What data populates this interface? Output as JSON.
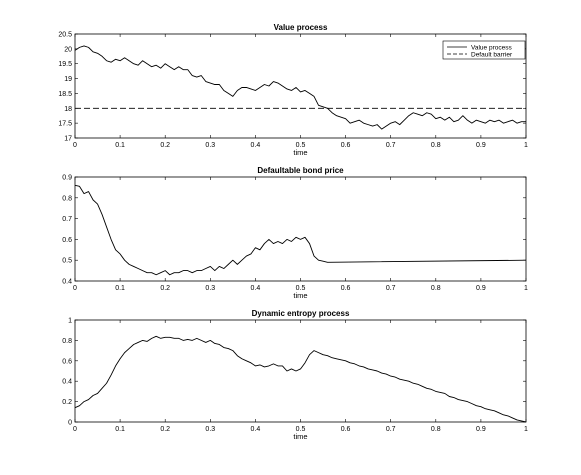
{
  "chart_data": [
    {
      "type": "line",
      "title": "Value process",
      "xlabel": "time",
      "ylabel": "",
      "xlim": [
        0,
        1
      ],
      "ylim": [
        17,
        20.5
      ],
      "xticks": [
        "0",
        "0.1",
        "0.2",
        "0.3",
        "0.4",
        "0.5",
        "0.6",
        "0.7",
        "0.8",
        "0.9",
        "1"
      ],
      "yticks": [
        "17",
        "17.5",
        "18",
        "18.5",
        "19",
        "19.5",
        "20",
        "20.5"
      ],
      "grid": false,
      "legend_position": "top-right",
      "series": [
        {
          "name": "Value process",
          "style": "solid",
          "x": [
            0,
            0.01,
            0.02,
            0.03,
            0.04,
            0.05,
            0.06,
            0.07,
            0.08,
            0.09,
            0.1,
            0.11,
            0.12,
            0.13,
            0.14,
            0.15,
            0.16,
            0.17,
            0.18,
            0.19,
            0.2,
            0.21,
            0.22,
            0.23,
            0.24,
            0.25,
            0.26,
            0.27,
            0.28,
            0.29,
            0.3,
            0.31,
            0.32,
            0.33,
            0.34,
            0.35,
            0.36,
            0.37,
            0.38,
            0.39,
            0.4,
            0.41,
            0.42,
            0.43,
            0.44,
            0.45,
            0.46,
            0.47,
            0.48,
            0.49,
            0.5,
            0.51,
            0.52,
            0.53,
            0.54,
            0.55,
            0.56,
            0.57,
            0.58,
            0.59,
            0.6,
            0.61,
            0.62,
            0.63,
            0.64,
            0.65,
            0.66,
            0.67,
            0.68,
            0.69,
            0.7,
            0.71,
            0.72,
            0.73,
            0.74,
            0.75,
            0.76,
            0.77,
            0.78,
            0.79,
            0.8,
            0.81,
            0.82,
            0.83,
            0.84,
            0.85,
            0.86,
            0.87,
            0.88,
            0.89,
            0.9,
            0.91,
            0.92,
            0.93,
            0.94,
            0.95,
            0.96,
            0.97,
            0.98,
            0.99,
            1.0
          ],
          "values": [
            19.95,
            20.05,
            20.1,
            20.05,
            19.9,
            19.85,
            19.75,
            19.6,
            19.55,
            19.65,
            19.6,
            19.7,
            19.6,
            19.5,
            19.45,
            19.6,
            19.5,
            19.4,
            19.45,
            19.35,
            19.5,
            19.4,
            19.3,
            19.4,
            19.3,
            19.3,
            19.1,
            19.05,
            19.1,
            18.9,
            18.85,
            18.8,
            18.8,
            18.6,
            18.5,
            18.4,
            18.6,
            18.7,
            18.7,
            18.65,
            18.6,
            18.7,
            18.8,
            18.75,
            18.9,
            18.85,
            18.75,
            18.65,
            18.6,
            18.7,
            18.55,
            18.6,
            18.5,
            18.4,
            18.1,
            18.05,
            18.0,
            17.85,
            17.75,
            17.7,
            17.65,
            17.5,
            17.55,
            17.6,
            17.5,
            17.45,
            17.4,
            17.45,
            17.3,
            17.4,
            17.5,
            17.55,
            17.45,
            17.6,
            17.75,
            17.85,
            17.8,
            17.75,
            17.85,
            17.8,
            17.65,
            17.7,
            17.6,
            17.7,
            17.55,
            17.6,
            17.75,
            17.6,
            17.5,
            17.6,
            17.55,
            17.5,
            17.6,
            17.55,
            17.6,
            17.5,
            17.55,
            17.6,
            17.5,
            17.55,
            17.55
          ]
        },
        {
          "name": "Default barrier",
          "style": "dashed",
          "x": [
            0,
            1
          ],
          "values": [
            18,
            18
          ]
        }
      ]
    },
    {
      "type": "line",
      "title": "Defaultable bond price",
      "xlabel": "time",
      "ylabel": "",
      "xlim": [
        0,
        1
      ],
      "ylim": [
        0.4,
        0.9
      ],
      "xticks": [
        "0",
        "0.1",
        "0.2",
        "0.3",
        "0.4",
        "0.5",
        "0.6",
        "0.7",
        "0.8",
        "0.9",
        "1"
      ],
      "yticks": [
        "0.4",
        "0.5",
        "0.6",
        "0.7",
        "0.8",
        "0.9"
      ],
      "grid": false,
      "series": [
        {
          "style": "solid",
          "x": [
            0,
            0.01,
            0.02,
            0.03,
            0.04,
            0.05,
            0.06,
            0.07,
            0.08,
            0.09,
            0.1,
            0.11,
            0.12,
            0.13,
            0.14,
            0.15,
            0.16,
            0.17,
            0.18,
            0.19,
            0.2,
            0.21,
            0.22,
            0.23,
            0.24,
            0.25,
            0.26,
            0.27,
            0.28,
            0.29,
            0.3,
            0.31,
            0.32,
            0.33,
            0.34,
            0.35,
            0.36,
            0.37,
            0.38,
            0.39,
            0.4,
            0.41,
            0.42,
            0.43,
            0.44,
            0.45,
            0.46,
            0.47,
            0.48,
            0.49,
            0.5,
            0.51,
            0.52,
            0.53,
            0.54,
            0.55,
            0.56,
            1.0
          ],
          "values": [
            0.86,
            0.855,
            0.82,
            0.83,
            0.79,
            0.77,
            0.72,
            0.66,
            0.6,
            0.55,
            0.53,
            0.5,
            0.48,
            0.47,
            0.46,
            0.45,
            0.44,
            0.44,
            0.43,
            0.44,
            0.45,
            0.43,
            0.44,
            0.44,
            0.45,
            0.45,
            0.44,
            0.45,
            0.45,
            0.46,
            0.47,
            0.45,
            0.47,
            0.46,
            0.48,
            0.5,
            0.48,
            0.5,
            0.52,
            0.53,
            0.56,
            0.55,
            0.58,
            0.6,
            0.58,
            0.59,
            0.58,
            0.6,
            0.59,
            0.61,
            0.6,
            0.61,
            0.58,
            0.52,
            0.5,
            0.495,
            0.49,
            0.5
          ]
        }
      ]
    },
    {
      "type": "line",
      "title": "Dynamic entropy process",
      "xlabel": "time",
      "ylabel": "",
      "xlim": [
        0,
        1
      ],
      "ylim": [
        0,
        1
      ],
      "xticks": [
        "0",
        "0.1",
        "0.2",
        "0.3",
        "0.4",
        "0.5",
        "0.6",
        "0.7",
        "0.8",
        "0.9",
        "1"
      ],
      "yticks": [
        "0",
        "0.2",
        "0.4",
        "0.6",
        "0.8",
        "1"
      ],
      "grid": false,
      "series": [
        {
          "style": "solid",
          "x": [
            0,
            0.01,
            0.02,
            0.03,
            0.04,
            0.05,
            0.06,
            0.07,
            0.08,
            0.09,
            0.1,
            0.11,
            0.12,
            0.13,
            0.14,
            0.15,
            0.16,
            0.17,
            0.18,
            0.19,
            0.2,
            0.21,
            0.22,
            0.23,
            0.24,
            0.25,
            0.26,
            0.27,
            0.28,
            0.29,
            0.3,
            0.31,
            0.32,
            0.33,
            0.34,
            0.35,
            0.36,
            0.37,
            0.38,
            0.39,
            0.4,
            0.41,
            0.42,
            0.43,
            0.44,
            0.45,
            0.46,
            0.47,
            0.48,
            0.49,
            0.5,
            0.51,
            0.52,
            0.53,
            0.54,
            0.55,
            0.56,
            0.57,
            0.58,
            0.59,
            0.6,
            0.61,
            0.62,
            0.63,
            0.64,
            0.65,
            0.66,
            0.67,
            0.68,
            0.69,
            0.7,
            0.71,
            0.72,
            0.73,
            0.74,
            0.75,
            0.76,
            0.77,
            0.78,
            0.79,
            0.8,
            0.81,
            0.82,
            0.83,
            0.84,
            0.85,
            0.86,
            0.87,
            0.88,
            0.89,
            0.9,
            0.91,
            0.92,
            0.93,
            0.94,
            0.95,
            0.96,
            0.97,
            0.98,
            0.99,
            1.0
          ],
          "values": [
            0.14,
            0.16,
            0.2,
            0.22,
            0.26,
            0.28,
            0.33,
            0.38,
            0.46,
            0.55,
            0.62,
            0.68,
            0.72,
            0.76,
            0.78,
            0.8,
            0.79,
            0.82,
            0.84,
            0.82,
            0.83,
            0.83,
            0.82,
            0.82,
            0.8,
            0.81,
            0.8,
            0.82,
            0.8,
            0.78,
            0.8,
            0.77,
            0.76,
            0.73,
            0.72,
            0.7,
            0.65,
            0.62,
            0.6,
            0.58,
            0.55,
            0.56,
            0.54,
            0.55,
            0.57,
            0.55,
            0.55,
            0.5,
            0.52,
            0.5,
            0.52,
            0.58,
            0.66,
            0.7,
            0.68,
            0.66,
            0.65,
            0.63,
            0.62,
            0.61,
            0.6,
            0.58,
            0.57,
            0.55,
            0.54,
            0.52,
            0.51,
            0.5,
            0.48,
            0.47,
            0.45,
            0.44,
            0.42,
            0.41,
            0.4,
            0.38,
            0.37,
            0.35,
            0.33,
            0.32,
            0.3,
            0.29,
            0.28,
            0.25,
            0.24,
            0.22,
            0.21,
            0.2,
            0.18,
            0.16,
            0.15,
            0.13,
            0.12,
            0.11,
            0.09,
            0.07,
            0.06,
            0.04,
            0.02,
            0.01,
            0.0
          ]
        }
      ]
    }
  ]
}
